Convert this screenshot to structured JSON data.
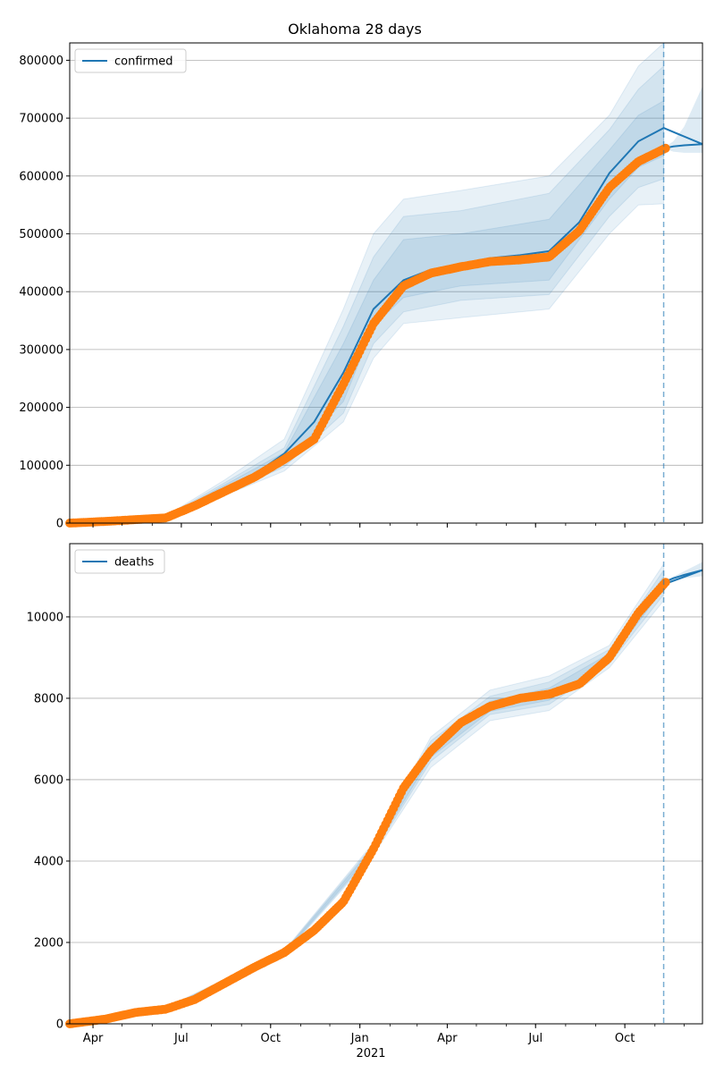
{
  "figure": {
    "title": "Oklahoma 28 days",
    "year_label": "2021"
  },
  "colors": {
    "model": "#1f77b4",
    "observed": "#ff7f0e",
    "band": "#1f77b4",
    "grid": "#b0b0b0",
    "forecast_line": "#1f77b4"
  },
  "chart_data": [
    {
      "type": "line",
      "legend_position": "top-left",
      "grid": "horizontal",
      "x_range": [
        "2020-03-08",
        "2021-12-20"
      ],
      "ylim": [
        0,
        830000
      ],
      "y_ticks": [
        0,
        100000,
        200000,
        300000,
        400000,
        500000,
        600000,
        700000,
        800000
      ],
      "y_tick_labels": [
        "0",
        "100000",
        "200000",
        "300000",
        "400000",
        "500000",
        "600000",
        "700000",
        "800000"
      ],
      "x_ticks": [
        "2020-04-01",
        "2020-07-01",
        "2020-10-01",
        "2021-01-01",
        "2021-04-01",
        "2021-07-01",
        "2021-10-01"
      ],
      "x_tick_labels": [
        "",
        "",
        "",
        "",
        "",
        "",
        ""
      ],
      "forecast_start": "2021-11-10",
      "series": [
        {
          "name": "confirmed",
          "x": [
            "2020-03-08",
            "2020-04-15",
            "2020-05-15",
            "2020-06-15",
            "2020-07-15",
            "2020-08-15",
            "2020-09-15",
            "2020-10-15",
            "2020-11-15",
            "2020-12-15",
            "2021-01-15",
            "2021-02-15",
            "2021-03-15",
            "2021-04-15",
            "2021-05-15",
            "2021-06-15",
            "2021-07-15",
            "2021-08-15",
            "2021-09-15",
            "2021-10-15",
            "2021-11-10",
            "2021-12-20"
          ],
          "y": [
            0,
            3000,
            6000,
            9000,
            30000,
            58000,
            85000,
            120000,
            175000,
            260000,
            370000,
            420000,
            438000,
            448000,
            458000,
            463000,
            470000,
            520000,
            605000,
            660000,
            683000,
            655000
          ]
        }
      ],
      "observed": {
        "x": [
          "2020-03-08",
          "2020-04-15",
          "2020-05-15",
          "2020-06-15",
          "2020-07-15",
          "2020-08-15",
          "2020-09-15",
          "2020-10-15",
          "2020-11-15",
          "2020-12-15",
          "2021-01-15",
          "2021-02-15",
          "2021-03-15",
          "2021-04-15",
          "2021-05-15",
          "2021-06-15",
          "2021-07-15",
          "2021-08-15",
          "2021-09-15",
          "2021-10-15",
          "2021-11-12"
        ],
        "y": [
          0,
          3000,
          6000,
          9000,
          30000,
          55000,
          80000,
          110000,
          145000,
          240000,
          345000,
          410000,
          432000,
          443000,
          452000,
          455000,
          460000,
          505000,
          580000,
          625000,
          648000
        ]
      },
      "prediction": {
        "x": [
          "2021-11-10",
          "2021-11-20",
          "2021-12-01",
          "2021-12-20"
        ],
        "y": [
          648000,
          651000,
          653000,
          655000
        ],
        "band_upper": [
          648000,
          660000,
          685000,
          755000
        ],
        "band_lower": [
          648000,
          642000,
          640000,
          640000
        ]
      },
      "bands": [
        {
          "x": [
            "2020-03-08",
            "2020-06-15",
            "2020-08-15",
            "2020-10-15",
            "2020-12-15",
            "2021-01-15",
            "2021-02-15",
            "2021-04-15",
            "2021-07-15",
            "2021-09-15",
            "2021-10-15",
            "2021-11-10"
          ],
          "upper": [
            0,
            12000,
            75000,
            145000,
            370000,
            500000,
            560000,
            575000,
            600000,
            705000,
            790000,
            830000
          ],
          "lower": [
            0,
            8000,
            48000,
            90000,
            175000,
            285000,
            345000,
            355000,
            370000,
            500000,
            550000,
            552000
          ]
        },
        {
          "x": [
            "2020-03-08",
            "2020-06-15",
            "2020-08-15",
            "2020-10-15",
            "2020-12-15",
            "2021-01-15",
            "2021-02-15",
            "2021-04-15",
            "2021-07-15",
            "2021-09-15",
            "2021-10-15",
            "2021-11-10"
          ],
          "upper": [
            0,
            11000,
            70000,
            130000,
            340000,
            460000,
            530000,
            540000,
            570000,
            680000,
            750000,
            790000
          ],
          "lower": [
            0,
            8500,
            52000,
            97000,
            190000,
            310000,
            365000,
            385000,
            395000,
            530000,
            580000,
            595000
          ]
        },
        {
          "x": [
            "2020-03-08",
            "2020-06-15",
            "2020-08-15",
            "2020-10-15",
            "2020-12-15",
            "2021-01-15",
            "2021-02-15",
            "2021-04-15",
            "2021-07-15",
            "2021-09-15",
            "2021-10-15",
            "2021-11-10"
          ],
          "upper": [
            0,
            10000,
            66000,
            122000,
            310000,
            420000,
            490000,
            500000,
            525000,
            645000,
            705000,
            730000
          ],
          "lower": [
            0,
            9000,
            55000,
            103000,
            210000,
            340000,
            390000,
            410000,
            420000,
            560000,
            615000,
            635000
          ]
        }
      ]
    },
    {
      "type": "line",
      "legend_position": "top-left",
      "grid": "horizontal",
      "x_range": [
        "2020-03-08",
        "2021-12-20"
      ],
      "ylim": [
        0,
        11800
      ],
      "y_ticks": [
        0,
        2000,
        4000,
        6000,
        8000,
        10000
      ],
      "y_tick_labels": [
        "0",
        "2000",
        "4000",
        "6000",
        "8000",
        "10000"
      ],
      "x_ticks": [
        "2020-04-01",
        "2020-07-01",
        "2020-10-01",
        "2021-01-01",
        "2021-04-01",
        "2021-07-01",
        "2021-10-01"
      ],
      "x_tick_labels": [
        "Apr",
        "Jul",
        "Oct",
        "Jan",
        "Apr",
        "Jul",
        "Oct"
      ],
      "forecast_start": "2021-11-10",
      "series": [
        {
          "name": "deaths",
          "x": [
            "2020-03-08",
            "2020-04-15",
            "2020-05-15",
            "2020-06-15",
            "2020-07-15",
            "2020-08-15",
            "2020-09-15",
            "2020-10-15",
            "2020-11-15",
            "2020-12-15",
            "2021-01-15",
            "2021-02-15",
            "2021-03-15",
            "2021-04-15",
            "2021-05-15",
            "2021-06-15",
            "2021-07-15",
            "2021-08-15",
            "2021-09-15",
            "2021-10-15",
            "2021-11-10",
            "2021-12-20"
          ],
          "y": [
            0,
            120,
            280,
            360,
            600,
            1000,
            1400,
            1750,
            2300,
            3000,
            4300,
            5800,
            6700,
            7400,
            7800,
            8000,
            8100,
            8350,
            9000,
            10100,
            10800,
            11150
          ]
        }
      ],
      "observed": {
        "x": [
          "2020-03-08",
          "2020-04-15",
          "2020-05-15",
          "2020-06-15",
          "2020-07-15",
          "2020-08-15",
          "2020-09-15",
          "2020-10-15",
          "2020-11-15",
          "2020-12-15",
          "2021-01-15",
          "2021-02-15",
          "2021-03-15",
          "2021-04-15",
          "2021-05-15",
          "2021-06-15",
          "2021-07-15",
          "2021-08-15",
          "2021-09-15",
          "2021-10-15",
          "2021-11-12"
        ],
        "y": [
          0,
          120,
          280,
          360,
          600,
          1000,
          1400,
          1750,
          2300,
          3000,
          4300,
          5800,
          6700,
          7400,
          7800,
          8000,
          8100,
          8350,
          9000,
          10100,
          10850
        ]
      },
      "prediction": {
        "x": [
          "2021-11-10",
          "2021-11-20",
          "2021-12-01",
          "2021-12-20"
        ],
        "y": [
          10850,
          10950,
          11030,
          11150
        ],
        "band_upper": [
          10850,
          10990,
          11120,
          11350
        ],
        "band_lower": [
          10850,
          10900,
          10950,
          11000
        ]
      },
      "bands": [
        {
          "x": [
            "2020-03-08",
            "2020-06-15",
            "2020-10-15",
            "2021-01-15",
            "2021-03-15",
            "2021-05-15",
            "2021-07-15",
            "2021-09-15",
            "2021-11-10"
          ],
          "upper": [
            0,
            400,
            1800,
            4450,
            7050,
            8200,
            8550,
            9300,
            11300
          ],
          "lower": [
            0,
            320,
            1700,
            4150,
            6300,
            7450,
            7700,
            8750,
            10400
          ]
        },
        {
          "x": [
            "2020-03-08",
            "2020-06-15",
            "2020-10-15",
            "2021-01-15",
            "2021-03-15",
            "2021-05-15",
            "2021-07-15",
            "2021-09-15",
            "2021-11-10"
          ],
          "upper": [
            0,
            385,
            1780,
            4400,
            6950,
            8050,
            8400,
            9200,
            11150
          ],
          "lower": [
            0,
            335,
            1720,
            4200,
            6450,
            7600,
            7850,
            8850,
            10550
          ]
        },
        {
          "x": [
            "2020-03-08",
            "2020-06-15",
            "2020-10-15",
            "2021-01-15",
            "2021-03-15",
            "2021-05-15",
            "2021-07-15",
            "2021-09-15",
            "2021-11-10"
          ],
          "upper": [
            0,
            372,
            1765,
            4350,
            6850,
            7930,
            8250,
            9100,
            11000
          ],
          "lower": [
            0,
            348,
            1735,
            4250,
            6550,
            7680,
            7950,
            8930,
            10700
          ]
        }
      ]
    }
  ]
}
